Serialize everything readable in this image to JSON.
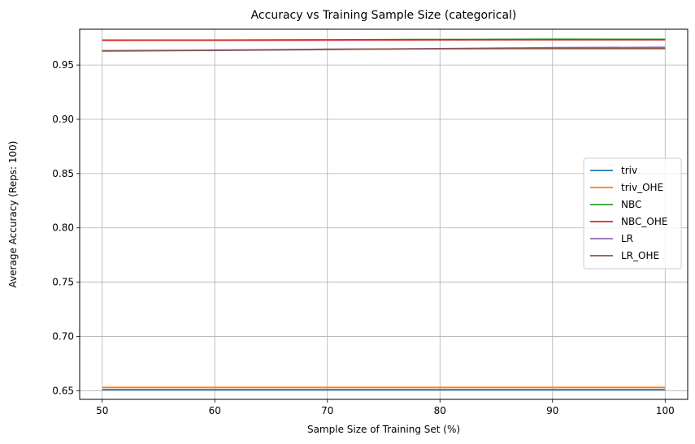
{
  "chart_data": {
    "type": "line",
    "title": "Accuracy vs Training Sample Size  (categorical)",
    "xlabel": "Sample Size of Training Set (%)",
    "ylabel": "Average Accuracy (Reps: 100)",
    "x": [
      50,
      60,
      70,
      80,
      90,
      100
    ],
    "xlim": [
      48,
      102
    ],
    "ylim": [
      0.642,
      0.983
    ],
    "xticks": [
      50,
      60,
      70,
      80,
      90,
      100
    ],
    "yticks": [
      0.65,
      0.7,
      0.75,
      0.8,
      0.85,
      0.9,
      0.95
    ],
    "ytick_labels": [
      "0.65",
      "0.70",
      "0.75",
      "0.80",
      "0.85",
      "0.90",
      "0.95"
    ],
    "grid": true,
    "legend_position": "center-right",
    "series": [
      {
        "name": "triv",
        "color": "#1f77b4",
        "values": [
          0.651,
          0.651,
          0.651,
          0.651,
          0.651,
          0.651
        ]
      },
      {
        "name": "triv_OHE",
        "color": "#ff7f0e",
        "values": [
          0.653,
          0.653,
          0.653,
          0.653,
          0.653,
          0.653
        ]
      },
      {
        "name": "NBC",
        "color": "#2ca02c",
        "values": [
          0.973,
          0.973,
          0.9733,
          0.9736,
          0.9738,
          0.9737
        ]
      },
      {
        "name": "NBC_OHE",
        "color": "#d62728",
        "values": [
          0.9728,
          0.9729,
          0.973,
          0.9732,
          0.9733,
          0.9733
        ]
      },
      {
        "name": "LR",
        "color": "#9467bd",
        "values": [
          0.9628,
          0.9635,
          0.9643,
          0.9651,
          0.966,
          0.9663
        ]
      },
      {
        "name": "LR_OHE",
        "color": "#8c564b",
        "values": [
          0.9632,
          0.9637,
          0.9645,
          0.965,
          0.9652,
          0.9652
        ]
      }
    ]
  }
}
